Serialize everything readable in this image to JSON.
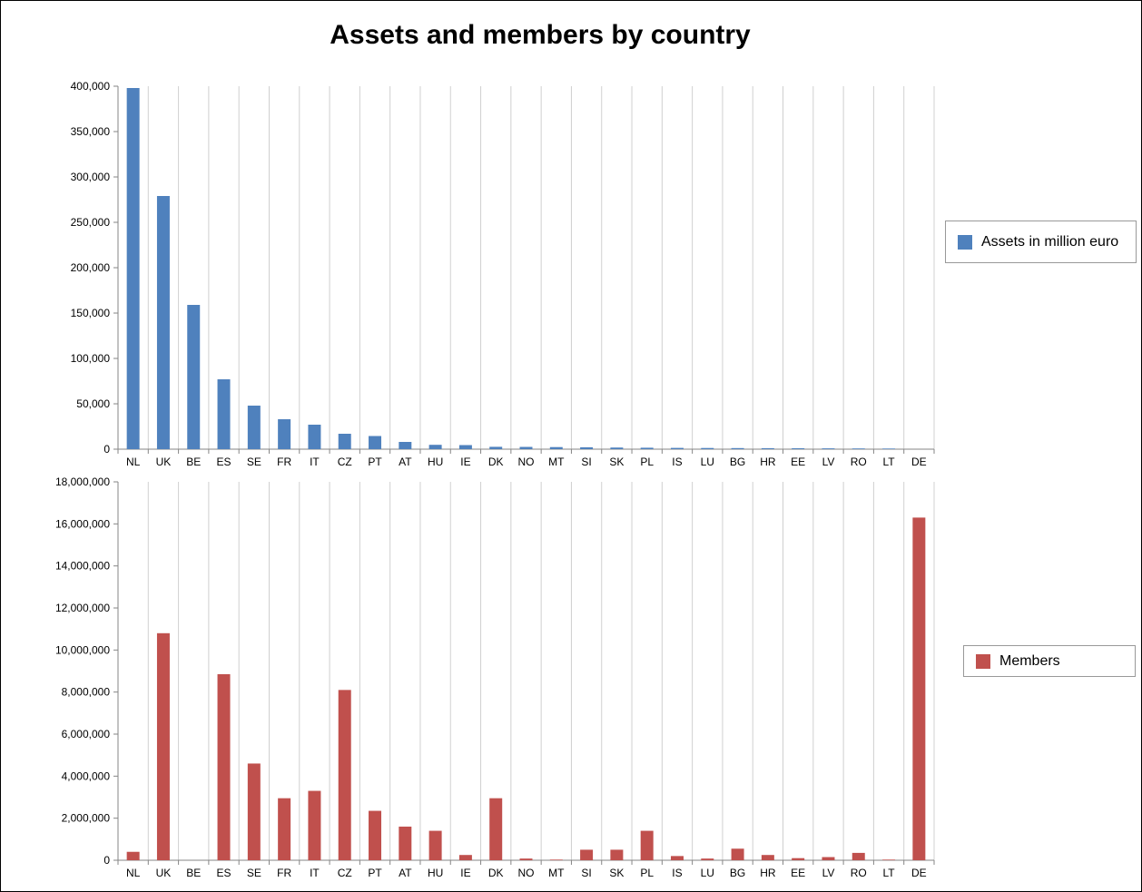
{
  "title": "Assets and members by country",
  "chart_data": [
    {
      "type": "bar",
      "categories": [
        "NL",
        "UK",
        "BE",
        "ES",
        "SE",
        "FR",
        "IT",
        "CZ",
        "PT",
        "AT",
        "HU",
        "IE",
        "DK",
        "NO",
        "MT",
        "SI",
        "SK",
        "PL",
        "IS",
        "LU",
        "BG",
        "HR",
        "EE",
        "LV",
        "RO",
        "LT",
        "DE"
      ],
      "series": [
        {
          "name": "Assets in million euro",
          "color": "#4f81bd",
          "values": [
            398000,
            279000,
            159000,
            77000,
            48000,
            33000,
            27000,
            17000,
            14500,
            8000,
            4800,
            4500,
            2600,
            2500,
            2300,
            2100,
            1800,
            1600,
            1400,
            1300,
            1200,
            1100,
            1000,
            900,
            800,
            700,
            0
          ]
        }
      ],
      "ylim": [
        0,
        400000
      ],
      "yticks": [
        0,
        50000,
        100000,
        150000,
        200000,
        250000,
        300000,
        350000,
        400000
      ],
      "ytick_labels": [
        "0",
        "50,000",
        "100,000",
        "150,000",
        "200,000",
        "250,000",
        "300,000",
        "350,000",
        "400,000"
      ],
      "legend_position": "right"
    },
    {
      "type": "bar",
      "categories": [
        "NL",
        "UK",
        "BE",
        "ES",
        "SE",
        "FR",
        "IT",
        "CZ",
        "PT",
        "AT",
        "HU",
        "IE",
        "DK",
        "NO",
        "MT",
        "SI",
        "SK",
        "PL",
        "IS",
        "LU",
        "BG",
        "HR",
        "EE",
        "LV",
        "RO",
        "LT",
        "DE"
      ],
      "series": [
        {
          "name": "Members",
          "color": "#c0504d",
          "values": [
            400000,
            10800000,
            0,
            8850000,
            4600000,
            2950000,
            3300000,
            8100000,
            2350000,
            1600000,
            1400000,
            250000,
            2950000,
            80000,
            30000,
            500000,
            500000,
            1400000,
            200000,
            80000,
            550000,
            250000,
            100000,
            150000,
            350000,
            30000,
            16300000
          ]
        }
      ],
      "ylim": [
        0,
        18000000
      ],
      "yticks": [
        0,
        2000000,
        4000000,
        6000000,
        8000000,
        10000000,
        12000000,
        14000000,
        16000000,
        18000000
      ],
      "ytick_labels": [
        "0",
        "2,000,000",
        "4,000,000",
        "6,000,000",
        "8,000,000",
        "10,000,000",
        "12,000,000",
        "14,000,000",
        "16,000,000",
        "18,000,000"
      ],
      "legend_position": "right"
    }
  ]
}
